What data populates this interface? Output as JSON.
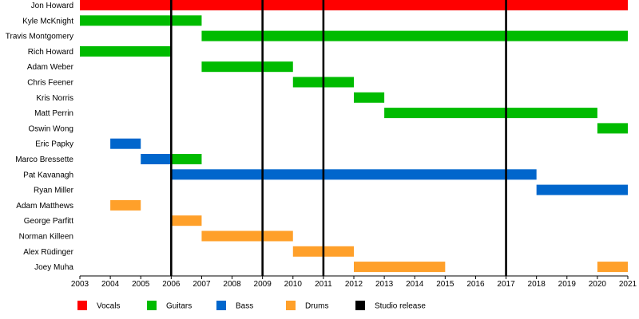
{
  "chart_data": {
    "type": "timeline",
    "title": "",
    "x_axis": {
      "min": 2003,
      "max": 2021,
      "tick_labels": [
        "2003",
        "2004",
        "2005",
        "2006",
        "2007",
        "2008",
        "2009",
        "2010",
        "2011",
        "2012",
        "2013",
        "2014",
        "2015",
        "2016",
        "2017",
        "2018",
        "2019",
        "2020",
        "2021"
      ]
    },
    "roles": [
      {
        "name": "Vocals",
        "color": "#ff0000"
      },
      {
        "name": "Guitars",
        "color": "#00bb00"
      },
      {
        "name": "Bass",
        "color": "#0066cc"
      },
      {
        "name": "Drums",
        "color": "#ffa02a"
      }
    ],
    "members": [
      {
        "name": "Jon Howard",
        "bars": [
          {
            "role": "Vocals",
            "start": 2003,
            "end": 2021
          }
        ]
      },
      {
        "name": "Kyle McKnight",
        "bars": [
          {
            "role": "Guitars",
            "start": 2003,
            "end": 2007
          }
        ]
      },
      {
        "name": "Travis Montgomery",
        "bars": [
          {
            "role": "Guitars",
            "start": 2007,
            "end": 2021
          }
        ]
      },
      {
        "name": "Rich Howard",
        "bars": [
          {
            "role": "Guitars",
            "start": 2003,
            "end": 2006
          }
        ]
      },
      {
        "name": "Adam Weber",
        "bars": [
          {
            "role": "Guitars",
            "start": 2007,
            "end": 2010
          }
        ]
      },
      {
        "name": "Chris Feener",
        "bars": [
          {
            "role": "Guitars",
            "start": 2010,
            "end": 2012
          }
        ]
      },
      {
        "name": "Kris Norris",
        "bars": [
          {
            "role": "Guitars",
            "start": 2012,
            "end": 2013
          }
        ]
      },
      {
        "name": "Matt Perrin",
        "bars": [
          {
            "role": "Guitars",
            "start": 2013,
            "end": 2020
          }
        ]
      },
      {
        "name": "Oswin Wong",
        "bars": [
          {
            "role": "Guitars",
            "start": 2020,
            "end": 2021
          }
        ]
      },
      {
        "name": "Eric Papky",
        "bars": [
          {
            "role": "Bass",
            "start": 2004,
            "end": 2005
          }
        ]
      },
      {
        "name": "Marco Bressette",
        "bars": [
          {
            "role": "Bass",
            "start": 2005,
            "end": 2006
          },
          {
            "role": "Guitars",
            "start": 2006,
            "end": 2007
          }
        ]
      },
      {
        "name": "Pat Kavanagh",
        "bars": [
          {
            "role": "Bass",
            "start": 2006,
            "end": 2018
          }
        ]
      },
      {
        "name": "Ryan Miller",
        "bars": [
          {
            "role": "Bass",
            "start": 2018,
            "end": 2021
          }
        ]
      },
      {
        "name": "Adam Matthews",
        "bars": [
          {
            "role": "Drums",
            "start": 2004,
            "end": 2005
          }
        ]
      },
      {
        "name": "George Parfitt",
        "bars": [
          {
            "role": "Drums",
            "start": 2006,
            "end": 2007
          }
        ]
      },
      {
        "name": "Norman Killeen",
        "bars": [
          {
            "role": "Drums",
            "start": 2007,
            "end": 2010
          }
        ]
      },
      {
        "name": "Alex Rüdinger",
        "bars": [
          {
            "role": "Drums",
            "start": 2010,
            "end": 2012
          }
        ]
      },
      {
        "name": "Joey Muha",
        "bars": [
          {
            "role": "Drums",
            "start": 2012,
            "end": 2015
          },
          {
            "role": "Drums",
            "start": 2020,
            "end": 2021
          }
        ]
      }
    ],
    "studio_releases": [
      2006,
      2009,
      2011,
      2017
    ],
    "legend": [
      {
        "label": "Vocals",
        "color": "#ff0000"
      },
      {
        "label": "Guitars",
        "color": "#00bb00"
      },
      {
        "label": "Bass",
        "color": "#0066cc"
      },
      {
        "label": "Drums",
        "color": "#ffa02a"
      },
      {
        "label": "Studio release",
        "color": "#000000"
      }
    ],
    "legend_position": "bottom"
  }
}
